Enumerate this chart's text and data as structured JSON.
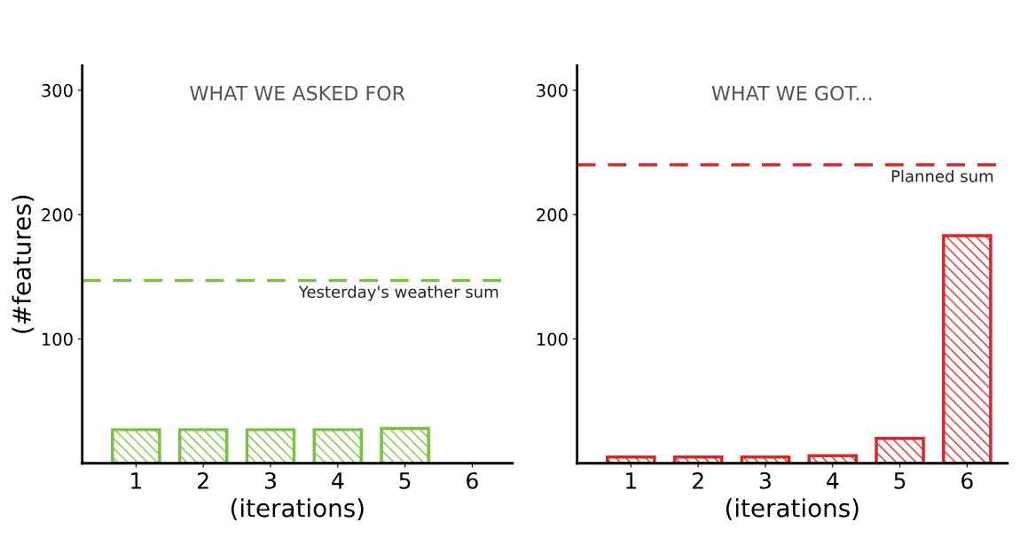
{
  "chart_data": [
    {
      "type": "bar",
      "title": "WHAT WE ASKED FOR",
      "xlabel": "(iterations)",
      "ylabel": "(#features)",
      "categories": [
        "1",
        "2",
        "3",
        "4",
        "5",
        "6"
      ],
      "series": [
        {
          "color": "#7cc242",
          "values": [
            27,
            27,
            27,
            27,
            28,
            null
          ]
        }
      ],
      "ylim": [
        0,
        320
      ],
      "yticks": [
        100,
        200,
        300
      ],
      "ref_lines": [
        {
          "axis": "y",
          "value": 147,
          "label": "Yesterday's weather sum",
          "color": "#7cc242",
          "line_style": "dashed"
        }
      ]
    },
    {
      "type": "bar",
      "title": "WHAT WE GOT...",
      "xlabel": "(iterations)",
      "categories": [
        "1",
        "2",
        "3",
        "4",
        "5",
        "6"
      ],
      "series": [
        {
          "color": "#d9262a",
          "values": [
            5,
            5,
            5,
            6,
            20,
            183
          ]
        }
      ],
      "ylim": [
        0,
        320
      ],
      "yticks": [
        100,
        200,
        300
      ],
      "ref_lines": [
        {
          "axis": "y",
          "value": 240,
          "label": "Planned sum",
          "color": "#d9262a",
          "line_style": "dashed"
        }
      ]
    }
  ]
}
